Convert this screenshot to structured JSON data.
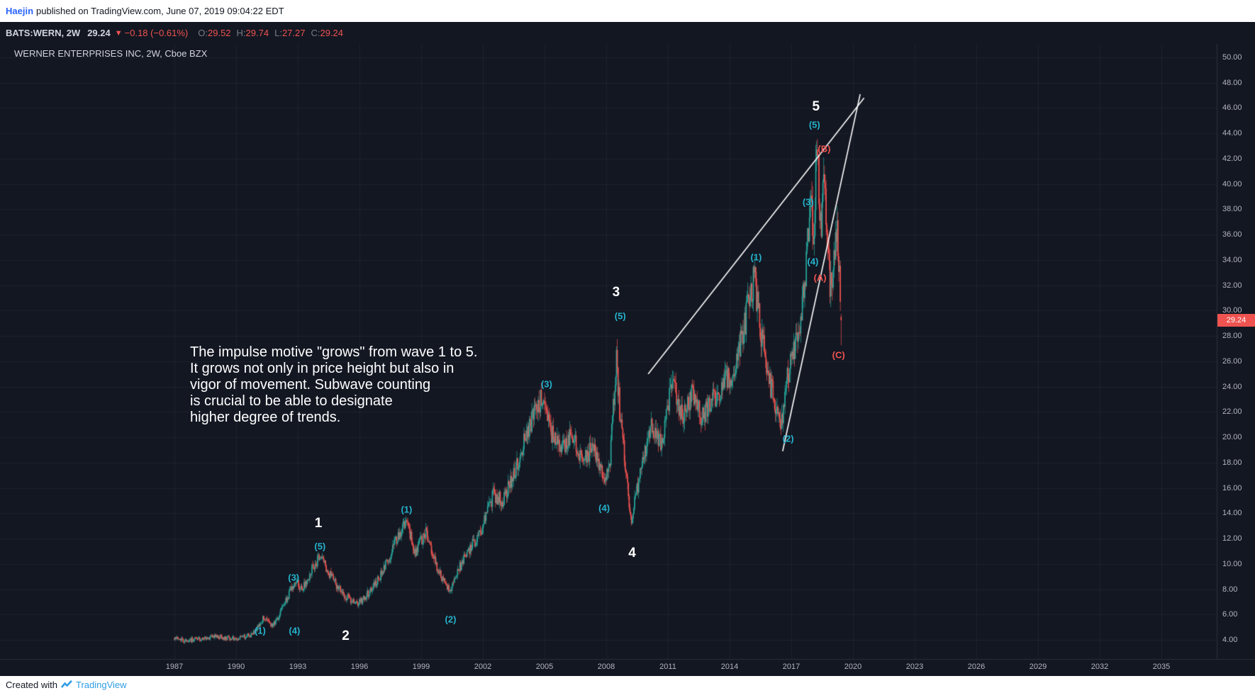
{
  "publish_bar": {
    "author": "Haejin",
    "text": "published on TradingView.com, June 07, 2019 09:04:22 EDT"
  },
  "ticker_bar": {
    "symbol": "BATS:WERN, 2W",
    "last": "29.24",
    "direction": "▼",
    "change": "−0.18 (−0.61%)",
    "ohlc": [
      {
        "label": "O:",
        "value": "29.52"
      },
      {
        "label": "H:",
        "value": "29.74"
      },
      {
        "label": "L:",
        "value": "27.27"
      },
      {
        "label": "C:",
        "value": "29.24"
      }
    ]
  },
  "footer": {
    "created_with": "Created with",
    "brand": "TradingView"
  },
  "colors": {
    "chart_bg": "#131722",
    "panel_bg": "#ffffff",
    "grid": "rgba(197,203,224,0.06)",
    "axis_border": "#2a2e39",
    "axis_text": "#b2b5be",
    "up": "#26a69a",
    "down": "#ef5350",
    "trendline": "#ffffff",
    "wave_major": "#ffffff",
    "wave_sub": "#25b3cc",
    "wave_corrective": "#ef5350",
    "link_blue": "#2962ff",
    "brand_blue": "#2f9de4",
    "last_tag_bg": "#ef5350"
  },
  "chart_data": {
    "type": "candlestick",
    "title": "WERNER ENTERPRISES INC, 2W, Cboe BZX",
    "symbol": "BATS:WERN",
    "interval": "2W",
    "exchange": "Cboe BZX",
    "last_price": "29.24",
    "last_bar": {
      "open": 29.52,
      "high": 29.74,
      "low": 27.27,
      "close": 29.24
    },
    "annotation_text": "The impulse motive \"grows\" from wave 1 to 5.\nIt grows not only in price height but also in\nvigor of movement. Subwave counting\nis crucial to be able to designate\nhigher degree of trends.",
    "x_axis": {
      "ticks": [
        1987,
        1990,
        1993,
        1996,
        1999,
        2002,
        2005,
        2008,
        2011,
        2014,
        2017,
        2020,
        2023,
        2026,
        2029,
        2032,
        2035
      ]
    },
    "y_axis": {
      "min": 4,
      "max": 50,
      "step": 2,
      "side": "right",
      "label_format": "0.00"
    },
    "data_start": 1987.0,
    "data_end": 2019.42,
    "bars_per_year": 26,
    "price_anchors": [
      [
        1987.0,
        4.1
      ],
      [
        1987.5,
        3.95
      ],
      [
        1988.2,
        4.05
      ],
      [
        1989.0,
        4.25
      ],
      [
        1990.0,
        4.1
      ],
      [
        1990.8,
        4.4
      ],
      [
        1991.3,
        5.7
      ],
      [
        1991.8,
        5.1
      ],
      [
        1992.3,
        6.6
      ],
      [
        1992.9,
        8.8
      ],
      [
        1993.2,
        7.9
      ],
      [
        1993.7,
        9.6
      ],
      [
        1994.1,
        10.7
      ],
      [
        1994.6,
        9.0
      ],
      [
        1995.2,
        7.6
      ],
      [
        1995.9,
        6.8
      ],
      [
        1996.5,
        7.8
      ],
      [
        1997.2,
        9.6
      ],
      [
        1997.8,
        12.0
      ],
      [
        1998.3,
        13.6
      ],
      [
        1998.7,
        10.8
      ],
      [
        1999.2,
        12.6
      ],
      [
        1999.8,
        9.5
      ],
      [
        2000.4,
        7.8
      ],
      [
        2000.9,
        9.8
      ],
      [
        2001.5,
        11.5
      ],
      [
        2002.0,
        13.0
      ],
      [
        2002.5,
        15.5
      ],
      [
        2003.0,
        15.0
      ],
      [
        2003.6,
        17.5
      ],
      [
        2004.2,
        20.5
      ],
      [
        2004.9,
        23.3
      ],
      [
        2005.3,
        20.5
      ],
      [
        2005.8,
        19.0
      ],
      [
        2006.3,
        20.5
      ],
      [
        2006.9,
        18.0
      ],
      [
        2007.4,
        19.5
      ],
      [
        2007.9,
        16.2
      ],
      [
        2008.2,
        18.5
      ],
      [
        2008.5,
        26.5
      ],
      [
        2008.65,
        22.0
      ],
      [
        2008.9,
        18.5
      ],
      [
        2009.2,
        13.4
      ],
      [
        2009.7,
        17.5
      ],
      [
        2010.2,
        21.0
      ],
      [
        2010.7,
        19.5
      ],
      [
        2011.2,
        24.5
      ],
      [
        2011.7,
        21.5
      ],
      [
        2012.2,
        23.5
      ],
      [
        2012.7,
        21.5
      ],
      [
        2013.2,
        23.0
      ],
      [
        2013.8,
        24.5
      ],
      [
        2014.3,
        25.5
      ],
      [
        2014.8,
        29.5
      ],
      [
        2015.2,
        32.5
      ],
      [
        2015.6,
        27.5
      ],
      [
        2016.0,
        24.0
      ],
      [
        2016.5,
        21.0
      ],
      [
        2016.9,
        25.5
      ],
      [
        2017.3,
        27.5
      ],
      [
        2017.7,
        33.0
      ],
      [
        2017.95,
        38.0
      ],
      [
        2018.1,
        36.0
      ],
      [
        2018.25,
        43.3
      ],
      [
        2018.45,
        35.5
      ],
      [
        2018.6,
        41.0
      ],
      [
        2018.9,
        31.8
      ],
      [
        2019.1,
        34.0
      ],
      [
        2019.25,
        36.5
      ],
      [
        2019.42,
        29.3
      ]
    ],
    "wave_labels": [
      {
        "text": "1",
        "style": "major",
        "year": 1994.0,
        "price": 13.2
      },
      {
        "text": "2",
        "style": "major",
        "year": 1995.33,
        "price": 4.3
      },
      {
        "text": "3",
        "style": "major",
        "year": 2008.48,
        "price": 31.4
      },
      {
        "text": "4",
        "style": "major",
        "year": 2009.26,
        "price": 10.8
      },
      {
        "text": "5",
        "style": "major",
        "year": 2018.2,
        "price": 46.1
      },
      {
        "text": "(1)",
        "style": "sub",
        "year": 1991.17,
        "price": 4.7
      },
      {
        "text": "(4)",
        "style": "sub",
        "year": 1992.84,
        "price": 4.7
      },
      {
        "text": "(3)",
        "style": "sub",
        "year": 1992.8,
        "price": 8.9
      },
      {
        "text": "(5)",
        "style": "sub",
        "year": 1994.08,
        "price": 11.4
      },
      {
        "text": "(1)",
        "style": "sub",
        "year": 1998.29,
        "price": 14.3
      },
      {
        "text": "(2)",
        "style": "sub",
        "year": 2000.43,
        "price": 5.6
      },
      {
        "text": "(3)",
        "style": "sub",
        "year": 2005.1,
        "price": 24.2
      },
      {
        "text": "(4)",
        "style": "sub",
        "year": 2007.9,
        "price": 14.4
      },
      {
        "text": "(5)",
        "style": "sub",
        "year": 2008.68,
        "price": 29.6
      },
      {
        "text": "(1)",
        "style": "sub",
        "year": 2015.29,
        "price": 34.2
      },
      {
        "text": "(2)",
        "style": "sub",
        "year": 2016.85,
        "price": 19.9
      },
      {
        "text": "(3)",
        "style": "sub",
        "year": 2017.82,
        "price": 38.6
      },
      {
        "text": "(4)",
        "style": "sub",
        "year": 2018.05,
        "price": 33.9
      },
      {
        "text": "(5)",
        "style": "sub",
        "year": 2018.13,
        "price": 44.7
      },
      {
        "text": "(A)",
        "style": "corrective",
        "year": 2018.4,
        "price": 32.6
      },
      {
        "text": "(B)",
        "style": "corrective",
        "year": 2018.6,
        "price": 42.8
      },
      {
        "text": "(C)",
        "style": "corrective",
        "year": 2019.3,
        "price": 26.5
      }
    ],
    "trendlines": [
      {
        "from": [
          2010.04,
          25.0
        ],
        "to": [
          2020.54,
          46.8
        ]
      },
      {
        "from": [
          2016.58,
          18.9
        ],
        "to": [
          2020.35,
          47.1
        ]
      }
    ]
  }
}
